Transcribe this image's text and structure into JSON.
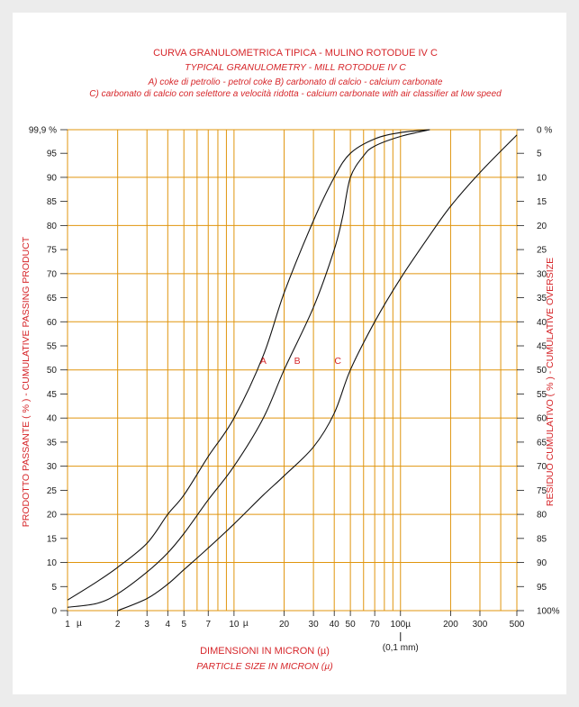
{
  "colors": {
    "grid": "#e0950e",
    "curve": "#111111",
    "text_red": "#d6262a",
    "tick": "#1a1a1a"
  },
  "chart_data": {
    "type": "line",
    "title": "CURVA GRANULOMETRICA TIPICA - MULINO ROTODUE IV C",
    "subtitle": "TYPICAL GRANULOMETRY - MILL ROTODUE IV C",
    "legend_lines": [
      "A) coke di petrolio - petrol coke    B) carbonato di calcio - calcium carbonate",
      "C) carbonato di calcio con selettore a velocità ridotta - calcium carbonate with air classifier at low speed"
    ],
    "xlabel": "DIMENSIONI IN MICRON (µ)",
    "xlabel_en": "PARTICLE SIZE IN MICRON  (µ)",
    "ylabel_left": "PRODOTTO PASSANTE   ( % )   -    CUMULATIVE PASSING PRODUCT",
    "ylabel_right": "RESIDUO CUMULATIVO ( % )   -    CUMULATIVE OVERSIZE",
    "x_scale": "log",
    "xlim": [
      1,
      500
    ],
    "ylim": [
      0,
      99.9
    ],
    "x_ticks": [
      {
        "v": 1,
        "label": "1"
      },
      {
        "v": 2,
        "label": "2"
      },
      {
        "v": 3,
        "label": "3"
      },
      {
        "v": 4,
        "label": "4"
      },
      {
        "v": 5,
        "label": "5"
      },
      {
        "v": 7,
        "label": "7"
      },
      {
        "v": 10,
        "label": "10"
      },
      {
        "v": 20,
        "label": "20"
      },
      {
        "v": 30,
        "label": "30"
      },
      {
        "v": 40,
        "label": "40"
      },
      {
        "v": 50,
        "label": "50"
      },
      {
        "v": 70,
        "label": "70"
      },
      {
        "v": 100,
        "label": "100µ"
      },
      {
        "v": 200,
        "label": "200"
      },
      {
        "v": 300,
        "label": "300"
      },
      {
        "v": 500,
        "label": "500"
      }
    ],
    "x_unit_marks": [
      {
        "v": 1,
        "label": "µ"
      },
      {
        "v": 10,
        "label": "µ"
      }
    ],
    "x_grid": [
      1,
      2,
      3,
      4,
      5,
      6,
      7,
      8,
      9,
      10,
      20,
      30,
      40,
      50,
      60,
      70,
      80,
      90,
      100,
      200,
      300,
      400,
      500
    ],
    "x_note": "(0,1 mm)",
    "x_note_at": 100,
    "y_left_ticks": [
      {
        "v": 0,
        "label": "0"
      },
      {
        "v": 5,
        "label": "5"
      },
      {
        "v": 10,
        "label": "10"
      },
      {
        "v": 15,
        "label": "15"
      },
      {
        "v": 20,
        "label": "20"
      },
      {
        "v": 25,
        "label": "25"
      },
      {
        "v": 30,
        "label": "30"
      },
      {
        "v": 35,
        "label": "35"
      },
      {
        "v": 40,
        "label": "40"
      },
      {
        "v": 45,
        "label": "45"
      },
      {
        "v": 50,
        "label": "50"
      },
      {
        "v": 55,
        "label": "55"
      },
      {
        "v": 60,
        "label": "60"
      },
      {
        "v": 65,
        "label": "65"
      },
      {
        "v": 70,
        "label": "70"
      },
      {
        "v": 75,
        "label": "75"
      },
      {
        "v": 80,
        "label": "80"
      },
      {
        "v": 85,
        "label": "85"
      },
      {
        "v": 90,
        "label": "90"
      },
      {
        "v": 95,
        "label": "95"
      },
      {
        "v": 99.9,
        "label": "99,9 %"
      }
    ],
    "y_right_ticks": [
      {
        "v": 99.9,
        "label": "0 %"
      },
      {
        "v": 95,
        "label": "5"
      },
      {
        "v": 90,
        "label": "10"
      },
      {
        "v": 85,
        "label": "15"
      },
      {
        "v": 80,
        "label": "20"
      },
      {
        "v": 75,
        "label": "25"
      },
      {
        "v": 70,
        "label": "30"
      },
      {
        "v": 65,
        "label": "35"
      },
      {
        "v": 60,
        "label": "40"
      },
      {
        "v": 55,
        "label": "45"
      },
      {
        "v": 50,
        "label": "50"
      },
      {
        "v": 45,
        "label": "55"
      },
      {
        "v": 40,
        "label": "60"
      },
      {
        "v": 35,
        "label": "65"
      },
      {
        "v": 30,
        "label": "70"
      },
      {
        "v": 25,
        "label": "75"
      },
      {
        "v": 20,
        "label": "80"
      },
      {
        "v": 15,
        "label": "85"
      },
      {
        "v": 10,
        "label": "90"
      },
      {
        "v": 5,
        "label": "95"
      },
      {
        "v": 0,
        "label": "100%"
      }
    ],
    "y_grid": [
      0,
      10,
      20,
      30,
      40,
      50,
      60,
      70,
      80,
      90,
      99.9
    ],
    "series": [
      {
        "name": "A",
        "label_at": {
          "x": 15,
          "y": 52
        },
        "x": [
          1,
          1.5,
          2,
          3,
          4,
          5,
          7,
          10,
          15,
          20,
          30,
          40,
          50,
          70,
          100,
          150
        ],
        "y": [
          2.2,
          6,
          9,
          14,
          20,
          24,
          32,
          40,
          53,
          66,
          81,
          90,
          95,
          98,
          99.3,
          99.9
        ]
      },
      {
        "name": "B",
        "label_at": {
          "x": 24,
          "y": 52
        },
        "x": [
          1,
          1.5,
          2,
          3,
          4,
          5,
          7,
          10,
          15,
          20,
          30,
          40,
          45,
          50,
          60,
          70,
          100,
          150
        ],
        "y": [
          0.7,
          1.5,
          3.5,
          8,
          12,
          16,
          23,
          30,
          40,
          50,
          63,
          75,
          82,
          90,
          94.5,
          96.5,
          98.5,
          99.9
        ]
      },
      {
        "name": "C",
        "label_at": {
          "x": 42,
          "y": 52
        },
        "x": [
          2,
          3,
          4,
          5,
          7,
          10,
          15,
          20,
          30,
          40,
          50,
          70,
          100,
          150,
          200,
          300,
          500
        ],
        "y": [
          0,
          2.5,
          5.5,
          8.5,
          13,
          18,
          24,
          28,
          34,
          41,
          50,
          60,
          69,
          78,
          84,
          91,
          98.8
        ]
      }
    ]
  }
}
